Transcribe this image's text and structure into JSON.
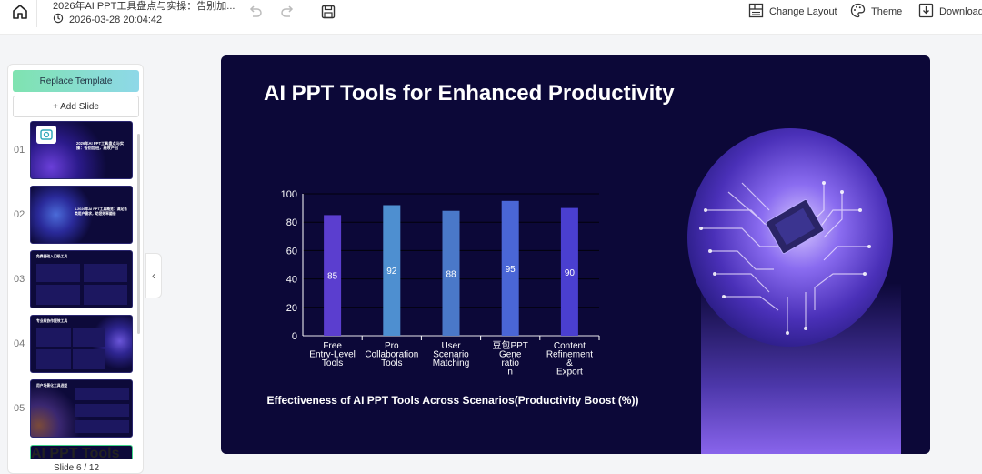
{
  "header": {
    "doc_title": "2026年AI PPT工具盘点与实操：告别加...",
    "timestamp": "2026-03-28 20:04:42",
    "change_layout_label": "Change Layout",
    "theme_label": "Theme",
    "download_label": "Download"
  },
  "sidebar": {
    "replace_template_label": "Replace Template",
    "add_slide_label": "+ Add Slide",
    "slide_counter": "Slide 6 / 12",
    "thumbnails": [
      {
        "number": "01"
      },
      {
        "number": "02"
      },
      {
        "number": "03"
      },
      {
        "number": "04"
      },
      {
        "number": "05"
      }
    ],
    "thumb_texts": {
      "t1": "2026年AI PPT工具盘点与实操：告别加班，高效产出",
      "t2": "1.2026年AI PPT工具概览：满足各类用户需求，助您效率翻倍",
      "t3": "免费基础入门级工具",
      "t4": "专业级协作提效工具",
      "t5": "用户场景化工具选型",
      "t6": "AI PPT Tools for Enhanced Productivity"
    }
  },
  "slide": {
    "title": "AI PPT Tools for Enhanced Productivity"
  },
  "chart_data": {
    "type": "bar",
    "categories": [
      [
        "Free",
        "Entry-Level",
        "Tools"
      ],
      [
        "Pro",
        "Collaboration",
        "Tools"
      ],
      [
        "User",
        "Scenario",
        "Matching"
      ],
      [
        "豆包PPT",
        "Gene",
        "ratio",
        "n"
      ],
      [
        "Content",
        "Refinement",
        "&",
        "Export"
      ]
    ],
    "values": [
      85,
      92,
      88,
      95,
      90
    ],
    "value_labels": [
      "85",
      "92",
      "88",
      "95",
      "90"
    ],
    "colors": [
      "#5b3ecf",
      "#4e8fd0",
      "#4a78c9",
      "#4a66d6",
      "#4a3fd0"
    ],
    "ylim": [
      0,
      100
    ],
    "yticks": [
      "0",
      "20",
      "40",
      "60",
      "80",
      "100"
    ],
    "grid": true,
    "title": "Effectiveness of AI PPT Tools Across Scenarios(Productivity Boost (%))"
  }
}
